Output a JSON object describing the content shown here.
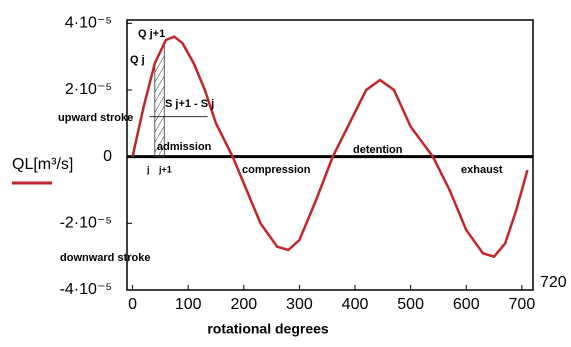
{
  "chart_data": {
    "type": "line",
    "x_label": "rotational degrees",
    "x": [
      0,
      20,
      40,
      60,
      75,
      90,
      110,
      130,
      150,
      180,
      200,
      230,
      260,
      280,
      300,
      330,
      360,
      390,
      420,
      445,
      470,
      500,
      540,
      570,
      600,
      630,
      650,
      670,
      690,
      710
    ],
    "series": [
      {
        "name": "QL[m³/s]",
        "color": "#c0262d",
        "values": [
          0,
          1.5e-05,
          2.8e-05,
          3.5e-05,
          3.6e-05,
          3.4e-05,
          2.8e-05,
          2e-05,
          1e-05,
          0,
          -8e-06,
          -2e-05,
          -2.7e-05,
          -2.8e-05,
          -2.5e-05,
          -1.3e-05,
          0,
          1e-05,
          2e-05,
          2.3e-05,
          2e-05,
          9e-06,
          0,
          -1e-05,
          -2.2e-05,
          -2.9e-05,
          -3e-05,
          -2.6e-05,
          -1.6e-05,
          -4e-06
        ]
      }
    ],
    "xlim": [
      -10,
      720
    ],
    "xticks": [
      0,
      100,
      200,
      300,
      400,
      500,
      600,
      700
    ],
    "ylim": [
      -4e-05,
      4.1e-05
    ],
    "yticks": [
      {
        "value": -4e-05,
        "label": "-4·10⁻⁵"
      },
      {
        "value": -2e-05,
        "label": "-2·10⁻⁵"
      },
      {
        "value": 0,
        "label": "0"
      },
      {
        "value": 2e-05,
        "label": "2·10⁻⁵"
      },
      {
        "value": 4e-05,
        "label": "4·10⁻⁵"
      }
    ],
    "annotations": [
      "Q j+1",
      "Q j",
      "S j+1 - S j",
      "admission",
      "compression",
      "detention",
      "exhaust",
      "upward stroke",
      "downward stroke",
      "j",
      "j+1",
      "720"
    ]
  }
}
